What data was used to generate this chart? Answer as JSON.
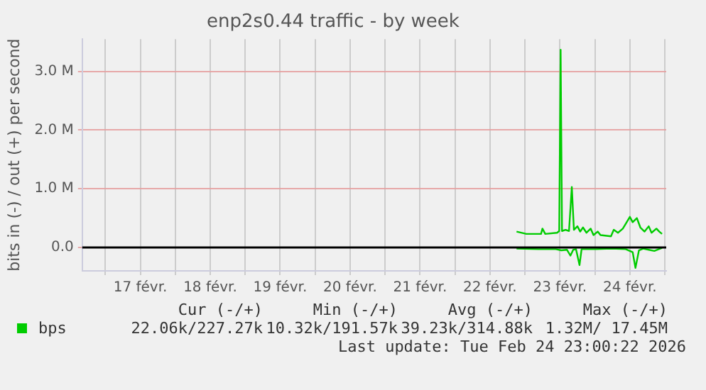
{
  "chart_data": {
    "type": "line",
    "title": "enp2s0.44 traffic - by week",
    "ylabel": "bits in (-) / out (+) per second",
    "xlim": [
      16.67,
      25.02
    ],
    "xticks": [
      {
        "value": 17,
        "label": null
      },
      {
        "value": 17.5,
        "label": "17 févr."
      },
      {
        "value": 18,
        "label": null
      },
      {
        "value": 18.5,
        "label": "18 févr."
      },
      {
        "value": 19,
        "label": null
      },
      {
        "value": 19.5,
        "label": "19 févr."
      },
      {
        "value": 20,
        "label": null
      },
      {
        "value": 20.5,
        "label": "20 févr."
      },
      {
        "value": 21,
        "label": null
      },
      {
        "value": 21.5,
        "label": "21 févr."
      },
      {
        "value": 22,
        "label": null
      },
      {
        "value": 22.5,
        "label": "22 févr."
      },
      {
        "value": 23,
        "label": null
      },
      {
        "value": 23.5,
        "label": "23 févr."
      },
      {
        "value": 24,
        "label": null
      },
      {
        "value": 24.5,
        "label": "24 févr."
      },
      {
        "value": 25,
        "label": null
      }
    ],
    "ylim": [
      -0.4,
      3.55
    ],
    "yticks": [
      {
        "value": 0,
        "label": "0.0"
      },
      {
        "value": 1,
        "label": "1.0 M"
      },
      {
        "value": 2,
        "label": "2.0 M"
      },
      {
        "value": 3,
        "label": "3.0 M"
      }
    ],
    "grid": true,
    "legend": "bottom left",
    "marker": "none",
    "line_style": "solid",
    "ref_lines": [
      {
        "axis": "y",
        "value": 0,
        "color": "#000000"
      }
    ],
    "series": [
      {
        "name": "bps",
        "color": "#00cc00",
        "x": [
          22.88,
          23.02,
          23.23,
          23.25,
          23.29,
          23.46,
          23.49,
          23.51,
          23.53,
          23.58,
          23.63,
          23.67,
          23.7,
          23.75,
          23.79,
          23.83,
          23.88,
          23.94,
          23.98,
          24.04,
          24.08,
          24.23,
          24.27,
          24.33,
          24.4,
          24.5,
          24.54,
          24.6,
          24.65,
          24.71,
          24.77,
          24.81,
          24.88,
          24.92,
          24.96
        ],
        "values": [
          0.27,
          0.23,
          0.23,
          0.32,
          0.23,
          0.25,
          0.28,
          3.37,
          0.28,
          0.3,
          0.28,
          1.03,
          0.3,
          0.36,
          0.27,
          0.34,
          0.25,
          0.32,
          0.21,
          0.27,
          0.21,
          0.19,
          0.3,
          0.25,
          0.32,
          0.52,
          0.43,
          0.5,
          0.34,
          0.27,
          0.36,
          0.25,
          0.32,
          0.27,
          0.23
        ]
      },
      {
        "color": "#00cc00",
        "x": [
          22.88,
          23.19,
          23.44,
          23.52,
          23.6,
          23.65,
          23.69,
          23.73,
          23.78,
          23.81,
          24.02,
          24.23,
          24.44,
          24.54,
          24.58,
          24.63,
          24.69,
          24.77,
          24.85,
          24.96
        ],
        "values": [
          -0.02,
          -0.03,
          -0.03,
          -0.05,
          -0.04,
          -0.14,
          -0.04,
          -0.03,
          -0.3,
          -0.03,
          -0.03,
          -0.02,
          -0.03,
          -0.08,
          -0.35,
          -0.05,
          -0.02,
          -0.04,
          -0.06,
          -0.01
        ]
      }
    ],
    "annotations": [
      "Cur (-/+)",
      "Min (-/+)",
      "Avg (-/+)",
      "Max (-/+)",
      "22.06k/227.27k",
      "10.32k/191.57k",
      "39.23k/314.88k",
      "1.32M/ 17.45M",
      "Last update: Tue Feb 24 23:00:22 2026"
    ]
  }
}
